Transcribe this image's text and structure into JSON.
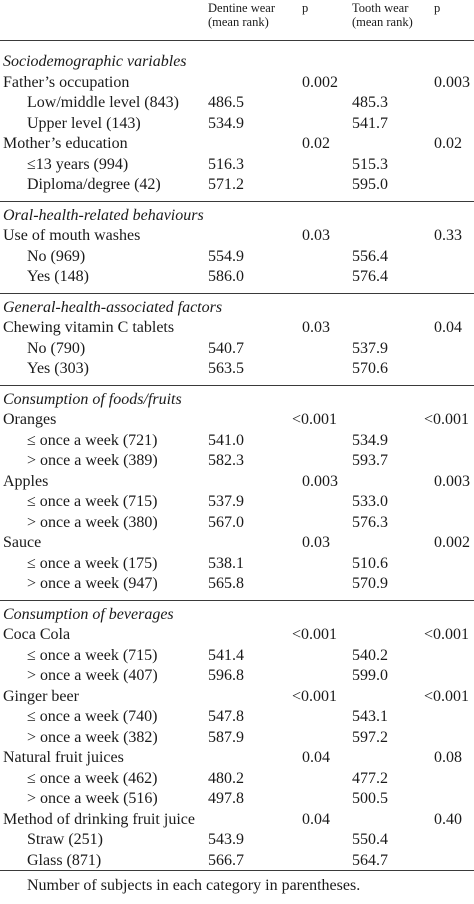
{
  "header": {
    "dentine_wear": "Dentine wear",
    "dentine_sub": "(mean rank)",
    "p1": "p",
    "tooth_wear": "Tooth wear",
    "tooth_sub": "(mean rank)",
    "p2": "p"
  },
  "rows": [
    {
      "kind": "section",
      "label": "Sociodemographic variables"
    },
    {
      "kind": "var",
      "label": "Father’s occupation",
      "p1": "0.002",
      "p2": "0.003"
    },
    {
      "kind": "cat",
      "label": "Low/middle level (843)",
      "dw": "486.5",
      "tw": "485.3"
    },
    {
      "kind": "cat",
      "label": "Upper level (143)",
      "dw": "534.9",
      "tw": "541.7"
    },
    {
      "kind": "var",
      "label": "Mother’s education",
      "p1": "0.02",
      "p2": "0.02"
    },
    {
      "kind": "cat",
      "label": "≤13 years (994)",
      "dw": "516.3",
      "tw": "515.3"
    },
    {
      "kind": "cat",
      "label": "Diploma/degree (42)",
      "dw": "571.2",
      "tw": "595.0"
    },
    {
      "kind": "section",
      "label": "Oral-health-related behaviours"
    },
    {
      "kind": "var",
      "label": "Use of mouth washes",
      "p1": "0.03",
      "p2": "0.33"
    },
    {
      "kind": "cat",
      "label": "No (969)",
      "dw": "554.9",
      "tw": "556.4"
    },
    {
      "kind": "cat",
      "label": "Yes (148)",
      "dw": "586.0",
      "tw": "576.4"
    },
    {
      "kind": "section",
      "label": "General-health-associated factors"
    },
    {
      "kind": "var",
      "label": "Chewing vitamin C tablets",
      "p1": "0.03",
      "p2": "0.04"
    },
    {
      "kind": "cat",
      "label": "No (790)",
      "dw": "540.7",
      "tw": "537.9"
    },
    {
      "kind": "cat",
      "label": "Yes (303)",
      "dw": "563.5",
      "tw": "570.6"
    },
    {
      "kind": "section",
      "label": "Consumption of foods/fruits"
    },
    {
      "kind": "var",
      "label": "Oranges",
      "p1": "<0.001",
      "p2": "<0.001"
    },
    {
      "kind": "cat",
      "label": "≤ once a week (721)",
      "dw": "541.0",
      "tw": "534.9"
    },
    {
      "kind": "cat",
      "label": "> once a week (389)",
      "dw": "582.3",
      "tw": "593.7"
    },
    {
      "kind": "var",
      "label": "Apples",
      "p1": "0.003",
      "p2": "0.003"
    },
    {
      "kind": "cat",
      "label": "≤ once a week (715)",
      "dw": "537.9",
      "tw": "533.0"
    },
    {
      "kind": "cat",
      "label": "> once a week (380)",
      "dw": "567.0",
      "tw": "576.3"
    },
    {
      "kind": "var",
      "label": "Sauce",
      "p1": "0.03",
      "p2": "0.002"
    },
    {
      "kind": "cat",
      "label": "≤ once a week (175)",
      "dw": "538.1",
      "tw": "510.6"
    },
    {
      "kind": "cat",
      "label": "> once a week (947)",
      "dw": "565.8",
      "tw": "570.9"
    },
    {
      "kind": "section",
      "label": "Consumption of beverages"
    },
    {
      "kind": "var",
      "label": "Coca Cola",
      "p1": "<0.001",
      "p2": "<0.001"
    },
    {
      "kind": "cat",
      "label": "≤ once a week (715)",
      "dw": "541.4",
      "tw": "540.2"
    },
    {
      "kind": "cat",
      "label": "> once a week (407)",
      "dw": "596.8",
      "tw": "599.0"
    },
    {
      "kind": "var",
      "label": "Ginger beer",
      "p1": "<0.001",
      "p2": "<0.001"
    },
    {
      "kind": "cat",
      "label": "≤ once a week (740)",
      "dw": "547.8",
      "tw": "543.1"
    },
    {
      "kind": "cat",
      "label": "> once a week (382)",
      "dw": "587.9",
      "tw": "597.2"
    },
    {
      "kind": "var",
      "label": "Natural fruit juices",
      "p1": "0.04",
      "p2": "0.08"
    },
    {
      "kind": "cat",
      "label": "≤ once a week (462)",
      "dw": "480.2",
      "tw": "477.2"
    },
    {
      "kind": "cat",
      "label": "> once a week (516)",
      "dw": "497.8",
      "tw": "500.5"
    },
    {
      "kind": "var",
      "label": "Method of drinking fruit juice",
      "p1": "0.04",
      "p2": "0.40"
    },
    {
      "kind": "cat",
      "label": "Straw (251)",
      "dw": "543.9",
      "tw": "550.4"
    },
    {
      "kind": "cat",
      "label": "Glass (871)",
      "dw": "566.7",
      "tw": "564.7"
    }
  ],
  "footnote": "Number of subjects in each category in parentheses."
}
